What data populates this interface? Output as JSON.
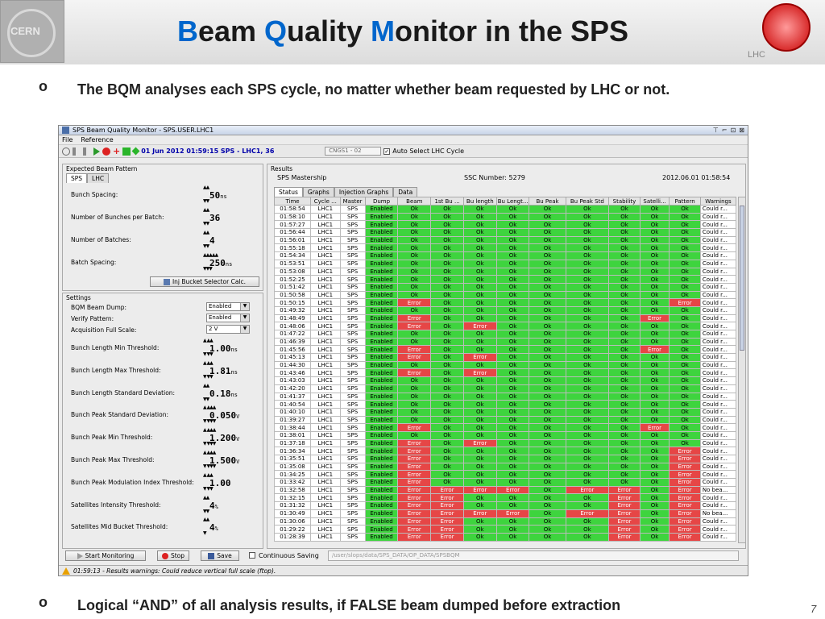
{
  "slide": {
    "title_parts": [
      {
        "cap": "B",
        "rest": "eam "
      },
      {
        "cap": "Q",
        "rest": "uality "
      },
      {
        "cap": "M",
        "rest": "onitor in the SPS"
      }
    ],
    "cern_logo_text": "CERN",
    "lhc_logo_text": "LHC",
    "bullet1_marker": "o",
    "bullet1": "The BQM analyses each SPS cycle, no matter whether beam requested by LHC or not.",
    "bullet2_marker": "o",
    "bullet2": "Logical “AND” of all analysis results, if FALSE beam dumped before extraction",
    "page_number": "7"
  },
  "app": {
    "window_title": "SPS Beam Quality Monitor - SPS.USER.LHC1",
    "window_buttons": [
      "⊤",
      "⌐",
      "⊡",
      "⊠"
    ],
    "menu": [
      "File",
      "Reference"
    ],
    "toolbar": {
      "cycle_text": "01 Jun 2012  01:59:15  SPS - LHC1, 36",
      "cycle_field": "CNGS1 - 02",
      "auto_select_label": "Auto Select LHC Cycle",
      "auto_select_checked": "✓"
    },
    "expected": {
      "group_title": "Expected Beam Pattern",
      "tabs": [
        "SPS",
        "LHC"
      ],
      "params": [
        {
          "label": "Bunch Spacing:",
          "value": "50",
          "unit": "ns",
          "up": "▲▲",
          "dn": "▼▼"
        },
        {
          "label": "Number of Bunches per Batch:",
          "value": "36",
          "unit": "",
          "up": "▲▲",
          "dn": "▼▼"
        },
        {
          "label": "Number of Batches:",
          "value": "4",
          "unit": "",
          "up": "▲▲",
          "dn": "▼▼"
        },
        {
          "label": "Batch Spacing:",
          "value": "250",
          "unit": "ns",
          "up": "▲▲▲▲▲",
          "dn": "▼▼▼"
        }
      ],
      "inj_button": "Inj Bucket Selector Calc."
    },
    "settings": {
      "group_title": "Settings",
      "selects": [
        {
          "label": "BQM Beam Dump:",
          "value": "Enabled"
        },
        {
          "label": "Verify Pattern:",
          "value": "Enabled"
        },
        {
          "label": "Acquisition Full Scale:",
          "value": "2 V"
        }
      ],
      "params": [
        {
          "label": "Bunch Length Min Threshold:",
          "value": "1.00",
          "unit": "ns",
          "up": "▲ ▲▲",
          "dn": "▼ ▼▼"
        },
        {
          "label": "Bunch Length Max Threshold:",
          "value": "1.81",
          "unit": "ns",
          "up": "▲ ▲▲",
          "dn": "▼ ▼▼"
        },
        {
          "label": "Bunch Length Standard Deviation:",
          "value": "0.18",
          "unit": "ns",
          "up": "▲▲",
          "dn": "▼▼"
        },
        {
          "label": "Bunch Peak Standard Deviation:",
          "value": "0.050",
          "unit": "V",
          "up": "▲ ▲▲▲",
          "dn": "▼ ▼▼▼"
        },
        {
          "label": "Bunch Peak Min Threshold:",
          "value": "1.200",
          "unit": "V",
          "up": "▲ ▲▲▲",
          "dn": "▼ ▼▼▼"
        },
        {
          "label": "Bunch Peak Max Threshold:",
          "value": "1.500",
          "unit": "V",
          "up": "▲ ▲▲▲",
          "dn": "▼ ▼▼▼"
        },
        {
          "label": "Bunch Peak Modulation Index Threshold:",
          "value": "1.00",
          "unit": "",
          "up": "▲ ▲▲",
          "dn": "▼ ▼▼"
        },
        {
          "label": "Satellites Intensity Threshold:",
          "value": "4",
          "unit": "%",
          "up": "▲▲",
          "dn": "▼▼"
        },
        {
          "label": "Satellites Mid Bucket Threshold:",
          "value": "4",
          "unit": "%",
          "up": "▲▲",
          "dn": "▼"
        }
      ]
    },
    "results": {
      "group_title": "Results",
      "tabs": [
        "Status",
        "Graphs",
        "Injection Graphs",
        "Data"
      ],
      "mastership_label": "SPS Mastership",
      "ssc_label": "SSC Number: 5279",
      "datetime": "2012.06.01 01:58:54",
      "columns": [
        "Time",
        "Cycle ...",
        "Master",
        "Dump",
        "Beam",
        "1st Bu ...",
        "Bu length",
        "Bu Lengt...",
        "Bu Peak",
        "Bu Peak Std",
        "Stability",
        "Satelli...",
        "Pattern",
        "Warnings"
      ],
      "rows": [
        [
          "01:58:54",
          "LHC1",
          "SPS",
          "Enabled",
          "Ok",
          "Ok",
          "Ok",
          "Ok",
          "Ok",
          "Ok",
          "Ok",
          "Ok",
          "Ok",
          "Could r..."
        ],
        [
          "01:58:10",
          "LHC1",
          "SPS",
          "Enabled",
          "Ok",
          "Ok",
          "Ok",
          "Ok",
          "Ok",
          "Ok",
          "Ok",
          "Ok",
          "Ok",
          "Could r..."
        ],
        [
          "01:57:27",
          "LHC1",
          "SPS",
          "Enabled",
          "Ok",
          "Ok",
          "Ok",
          "Ok",
          "Ok",
          "Ok",
          "Ok",
          "Ok",
          "Ok",
          "Could r..."
        ],
        [
          "01:56:44",
          "LHC1",
          "SPS",
          "Enabled",
          "Ok",
          "Ok",
          "Ok",
          "Ok",
          "Ok",
          "Ok",
          "Ok",
          "Ok",
          "Ok",
          "Could r..."
        ],
        [
          "01:56:01",
          "LHC1",
          "SPS",
          "Enabled",
          "Ok",
          "Ok",
          "Ok",
          "Ok",
          "Ok",
          "Ok",
          "Ok",
          "Ok",
          "Ok",
          "Could r..."
        ],
        [
          "01:55:18",
          "LHC1",
          "SPS",
          "Enabled",
          "Ok",
          "Ok",
          "Ok",
          "Ok",
          "Ok",
          "Ok",
          "Ok",
          "Ok",
          "Ok",
          "Could r..."
        ],
        [
          "01:54:34",
          "LHC1",
          "SPS",
          "Enabled",
          "Ok",
          "Ok",
          "Ok",
          "Ok",
          "Ok",
          "Ok",
          "Ok",
          "Ok",
          "Ok",
          "Could r..."
        ],
        [
          "01:53:51",
          "LHC1",
          "SPS",
          "Enabled",
          "Ok",
          "Ok",
          "Ok",
          "Ok",
          "Ok",
          "Ok",
          "Ok",
          "Ok",
          "Ok",
          "Could r..."
        ],
        [
          "01:53:08",
          "LHC1",
          "SPS",
          "Enabled",
          "Ok",
          "Ok",
          "Ok",
          "Ok",
          "Ok",
          "Ok",
          "Ok",
          "Ok",
          "Ok",
          "Could r..."
        ],
        [
          "01:52:25",
          "LHC1",
          "SPS",
          "Enabled",
          "Ok",
          "Ok",
          "Ok",
          "Ok",
          "Ok",
          "Ok",
          "Ok",
          "Ok",
          "Ok",
          "Could r..."
        ],
        [
          "01:51:42",
          "LHC1",
          "SPS",
          "Enabled",
          "Ok",
          "Ok",
          "Ok",
          "Ok",
          "Ok",
          "Ok",
          "Ok",
          "Ok",
          "Ok",
          "Could r..."
        ],
        [
          "01:50:58",
          "LHC1",
          "SPS",
          "Enabled",
          "Ok",
          "Ok",
          "Ok",
          "Ok",
          "Ok",
          "Ok",
          "Ok",
          "Ok",
          "Ok",
          "Could r..."
        ],
        [
          "01:50:15",
          "LHC1",
          "SPS",
          "Enabled",
          "Error",
          "Ok",
          "Ok",
          "Ok",
          "Ok",
          "Ok",
          "Ok",
          "Ok",
          "Error",
          "Could r..."
        ],
        [
          "01:49:32",
          "LHC1",
          "SPS",
          "Enabled",
          "Ok",
          "Ok",
          "Ok",
          "Ok",
          "Ok",
          "Ok",
          "Ok",
          "Ok",
          "Ok",
          "Could r..."
        ],
        [
          "01:48:49",
          "LHC1",
          "SPS",
          "Enabled",
          "Error",
          "Ok",
          "Ok",
          "Ok",
          "Ok",
          "Ok",
          "Ok",
          "Error",
          "Ok",
          "Could r..."
        ],
        [
          "01:48:06",
          "LHC1",
          "SPS",
          "Enabled",
          "Error",
          "Ok",
          "Error",
          "Ok",
          "Ok",
          "Ok",
          "Ok",
          "Ok",
          "Ok",
          "Could r..."
        ],
        [
          "01:47:22",
          "LHC1",
          "SPS",
          "Enabled",
          "Ok",
          "Ok",
          "Ok",
          "Ok",
          "Ok",
          "Ok",
          "Ok",
          "Ok",
          "Ok",
          "Could r..."
        ],
        [
          "01:46:39",
          "LHC1",
          "SPS",
          "Enabled",
          "Ok",
          "Ok",
          "Ok",
          "Ok",
          "Ok",
          "Ok",
          "Ok",
          "Ok",
          "Ok",
          "Could r..."
        ],
        [
          "01:45:56",
          "LHC1",
          "SPS",
          "Enabled",
          "Error",
          "Ok",
          "Ok",
          "Ok",
          "Ok",
          "Ok",
          "Ok",
          "Error",
          "Ok",
          "Could r..."
        ],
        [
          "01:45:13",
          "LHC1",
          "SPS",
          "Enabled",
          "Error",
          "Ok",
          "Error",
          "Ok",
          "Ok",
          "Ok",
          "Ok",
          "Ok",
          "Ok",
          "Could r..."
        ],
        [
          "01:44:30",
          "LHC1",
          "SPS",
          "Enabled",
          "Ok",
          "Ok",
          "Ok",
          "Ok",
          "Ok",
          "Ok",
          "Ok",
          "Ok",
          "Ok",
          "Could r..."
        ],
        [
          "01:43:46",
          "LHC1",
          "SPS",
          "Enabled",
          "Error",
          "Ok",
          "Error",
          "Ok",
          "Ok",
          "Ok",
          "Ok",
          "Ok",
          "Ok",
          "Could r..."
        ],
        [
          "01:43:03",
          "LHC1",
          "SPS",
          "Enabled",
          "Ok",
          "Ok",
          "Ok",
          "Ok",
          "Ok",
          "Ok",
          "Ok",
          "Ok",
          "Ok",
          "Could r..."
        ],
        [
          "01:42:20",
          "LHC1",
          "SPS",
          "Enabled",
          "Ok",
          "Ok",
          "Ok",
          "Ok",
          "Ok",
          "Ok",
          "Ok",
          "Ok",
          "Ok",
          "Could r..."
        ],
        [
          "01:41:37",
          "LHC1",
          "SPS",
          "Enabled",
          "Ok",
          "Ok",
          "Ok",
          "Ok",
          "Ok",
          "Ok",
          "Ok",
          "Ok",
          "Ok",
          "Could r..."
        ],
        [
          "01:40:54",
          "LHC1",
          "SPS",
          "Enabled",
          "Ok",
          "Ok",
          "Ok",
          "Ok",
          "Ok",
          "Ok",
          "Ok",
          "Ok",
          "Ok",
          "Could r..."
        ],
        [
          "01:40:10",
          "LHC1",
          "SPS",
          "Enabled",
          "Ok",
          "Ok",
          "Ok",
          "Ok",
          "Ok",
          "Ok",
          "Ok",
          "Ok",
          "Ok",
          "Could r..."
        ],
        [
          "01:39:27",
          "LHC1",
          "SPS",
          "Enabled",
          "Ok",
          "Ok",
          "Ok",
          "Ok",
          "Ok",
          "Ok",
          "Ok",
          "Ok",
          "Ok",
          "Could r..."
        ],
        [
          "01:38:44",
          "LHC1",
          "SPS",
          "Enabled",
          "Error",
          "Ok",
          "Ok",
          "Ok",
          "Ok",
          "Ok",
          "Ok",
          "Error",
          "Ok",
          "Could r..."
        ],
        [
          "01:38:01",
          "LHC1",
          "SPS",
          "Enabled",
          "Ok",
          "Ok",
          "Ok",
          "Ok",
          "Ok",
          "Ok",
          "Ok",
          "Ok",
          "Ok",
          "Could r..."
        ],
        [
          "01:37:18",
          "LHC1",
          "SPS",
          "Enabled",
          "Error",
          "Ok",
          "Error",
          "Ok",
          "Ok",
          "Ok",
          "Ok",
          "Ok",
          "Ok",
          "Could r..."
        ],
        [
          "01:36:34",
          "LHC1",
          "SPS",
          "Enabled",
          "Error",
          "Ok",
          "Ok",
          "Ok",
          "Ok",
          "Ok",
          "Ok",
          "Ok",
          "Error",
          "Could r..."
        ],
        [
          "01:35:51",
          "LHC1",
          "SPS",
          "Enabled",
          "Error",
          "Ok",
          "Ok",
          "Ok",
          "Ok",
          "Ok",
          "Ok",
          "Ok",
          "Error",
          "Could r..."
        ],
        [
          "01:35:08",
          "LHC1",
          "SPS",
          "Enabled",
          "Error",
          "Ok",
          "Ok",
          "Ok",
          "Ok",
          "Ok",
          "Ok",
          "Ok",
          "Error",
          "Could r..."
        ],
        [
          "01:34:25",
          "LHC1",
          "SPS",
          "Enabled",
          "Error",
          "Ok",
          "Ok",
          "Ok",
          "Ok",
          "Ok",
          "Ok",
          "Ok",
          "Error",
          "Could r..."
        ],
        [
          "01:33:42",
          "LHC1",
          "SPS",
          "Enabled",
          "Error",
          "Ok",
          "Ok",
          "Ok",
          "Ok",
          "Ok",
          "Ok",
          "Ok",
          "Error",
          "Could r..."
        ],
        [
          "01:32:58",
          "LHC1",
          "SPS",
          "Enabled",
          "Error",
          "Error",
          "Error",
          "Error",
          "Ok",
          "Error",
          "Error",
          "Ok",
          "Error",
          "No bea..."
        ],
        [
          "01:32:15",
          "LHC1",
          "SPS",
          "Enabled",
          "Error",
          "Error",
          "Ok",
          "Ok",
          "Ok",
          "Ok",
          "Error",
          "Ok",
          "Error",
          "Could r..."
        ],
        [
          "01:31:32",
          "LHC1",
          "SPS",
          "Enabled",
          "Error",
          "Error",
          "Ok",
          "Ok",
          "Ok",
          "Ok",
          "Error",
          "Ok",
          "Error",
          "Could r..."
        ],
        [
          "01:30:49",
          "LHC1",
          "SPS",
          "Enabled",
          "Error",
          "Error",
          "Error",
          "Error",
          "Ok",
          "Error",
          "Error",
          "Ok",
          "Error",
          "No bea..."
        ],
        [
          "01:30:06",
          "LHC1",
          "SPS",
          "Enabled",
          "Error",
          "Error",
          "Ok",
          "Ok",
          "Ok",
          "Ok",
          "Error",
          "Ok",
          "Error",
          "Could r..."
        ],
        [
          "01:29:22",
          "LHC1",
          "SPS",
          "Enabled",
          "Error",
          "Error",
          "Ok",
          "Ok",
          "Ok",
          "Ok",
          "Error",
          "Ok",
          "Error",
          "Could r..."
        ],
        [
          "01:28:39",
          "LHC1",
          "SPS",
          "Enabled",
          "Error",
          "Error",
          "Ok",
          "Ok",
          "Ok",
          "Ok",
          "Error",
          "Ok",
          "Error",
          "Could r..."
        ]
      ]
    },
    "bottom": {
      "start_label": "Start Monitoring",
      "stop_label": "Stop",
      "save_label": "Save",
      "continuous_label": "Continuous Saving",
      "path": "/user/slops/data/SPS_DATA/OP_DATA/SPSBQM"
    },
    "status": {
      "message": "01:59:13 - Results warnings: Could reduce vertical full scale (ftop)."
    }
  },
  "colors": {
    "ok": "#3ed43e",
    "error": "#e64646",
    "accent": "#0066cc"
  }
}
